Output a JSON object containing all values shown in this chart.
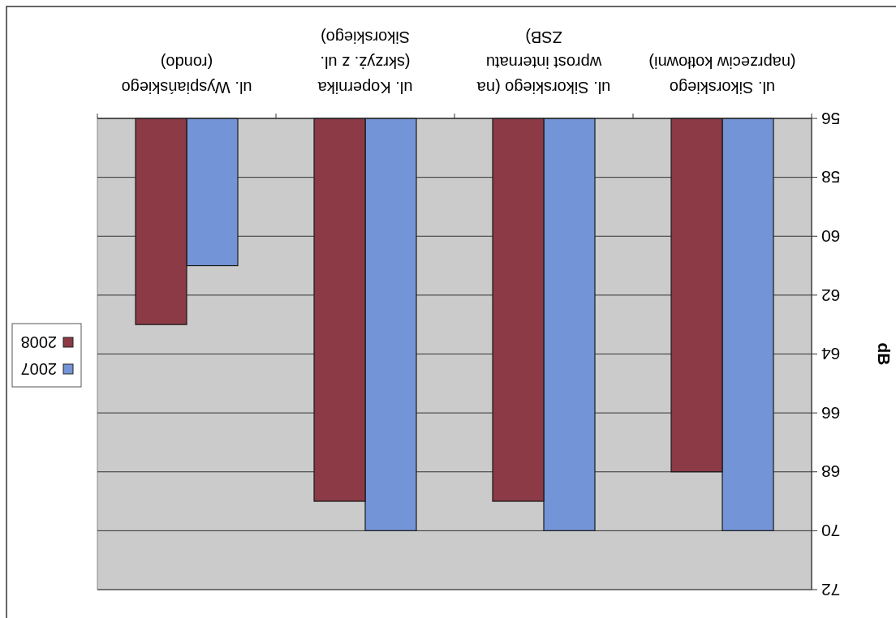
{
  "chart_data": {
    "type": "bar",
    "ylabel": "dB",
    "categories": [
      "ul. Wyspiańskiego (rondo)",
      "ul. Kopernika (skrzyż. z ul. Sikorskiego)",
      "ul. Sikorskiego (na wprost internatu ZSB)",
      "ul. Sikorskiego (naprzeciw kotłowni)"
    ],
    "series": [
      {
        "name": "2007",
        "color": "#7394d6",
        "values": [
          61,
          70,
          70,
          70
        ]
      },
      {
        "name": "2008",
        "color": "#8b3a46",
        "values": [
          63,
          69,
          69,
          68
        ]
      }
    ],
    "ylim": [
      72,
      56
    ],
    "yticks": [
      72,
      70,
      68,
      66,
      64,
      62,
      60,
      58,
      56
    ],
    "grid": "y",
    "legend": "left"
  }
}
